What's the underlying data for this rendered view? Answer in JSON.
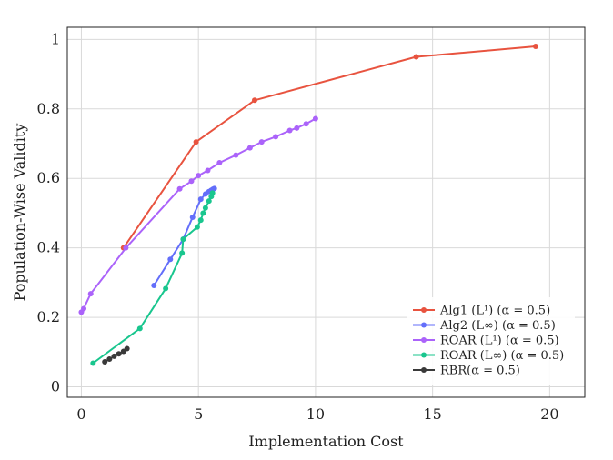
{
  "chart_data": {
    "type": "line",
    "xlabel": "Implementation Cost",
    "ylabel": "Population-Wise Validity",
    "xlim": [
      -0.6,
      21.5
    ],
    "ylim": [
      -0.03,
      1.035
    ],
    "xticks": [
      0,
      5,
      10,
      15,
      20
    ],
    "xtick_labels": [
      "0",
      "5",
      "10",
      "15",
      "20"
    ],
    "yticks": [
      0,
      0.2,
      0.4,
      0.6,
      0.8,
      1
    ],
    "ytick_labels": [
      "0",
      "0.2",
      "0.4",
      "0.6",
      "0.8",
      "1"
    ],
    "grid": true,
    "legend_position": "bottom-right",
    "series": [
      {
        "name": "Alg1 (L¹) (α = 0.5)",
        "color": "#e8533f",
        "x": [
          1.8,
          4.9,
          7.4,
          14.3,
          19.4
        ],
        "y": [
          0.4,
          0.705,
          0.825,
          0.95,
          0.98
        ]
      },
      {
        "name": "Alg2 (L∞) (α = 0.5)",
        "color": "#636efa",
        "x": [
          3.1,
          3.8,
          4.35,
          4.75,
          5.1,
          5.3,
          5.45,
          5.55,
          5.62,
          5.68
        ],
        "y": [
          0.292,
          0.367,
          0.425,
          0.488,
          0.54,
          0.555,
          0.562,
          0.566,
          0.569,
          0.571
        ]
      },
      {
        "name": "ROAR (L¹) (α = 0.5)",
        "color": "#ab63fa",
        "x": [
          0.0,
          0.1,
          0.4,
          1.9,
          4.2,
          4.7,
          5.0,
          5.4,
          5.9,
          6.6,
          7.2,
          7.7,
          8.3,
          8.9,
          9.2,
          9.6,
          10.0
        ],
        "y": [
          0.215,
          0.225,
          0.268,
          0.4,
          0.57,
          0.592,
          0.608,
          0.623,
          0.645,
          0.667,
          0.688,
          0.705,
          0.72,
          0.738,
          0.745,
          0.757,
          0.772
        ]
      },
      {
        "name": "ROAR (L∞) (α = 0.5)",
        "color": "#19c68e",
        "x": [
          0.5,
          2.5,
          3.6,
          4.3,
          4.35,
          4.95,
          5.1,
          5.2,
          5.3,
          5.45,
          5.55,
          5.6
        ],
        "y": [
          0.068,
          0.168,
          0.283,
          0.385,
          0.425,
          0.46,
          0.48,
          0.5,
          0.515,
          0.535,
          0.548,
          0.558
        ]
      },
      {
        "name": "RBR(α = 0.5)",
        "color": "#3a3a3a",
        "x": [
          1.0,
          1.2,
          1.4,
          1.6,
          1.8,
          1.95
        ],
        "y": [
          0.072,
          0.08,
          0.088,
          0.095,
          0.102,
          0.11
        ]
      }
    ]
  }
}
